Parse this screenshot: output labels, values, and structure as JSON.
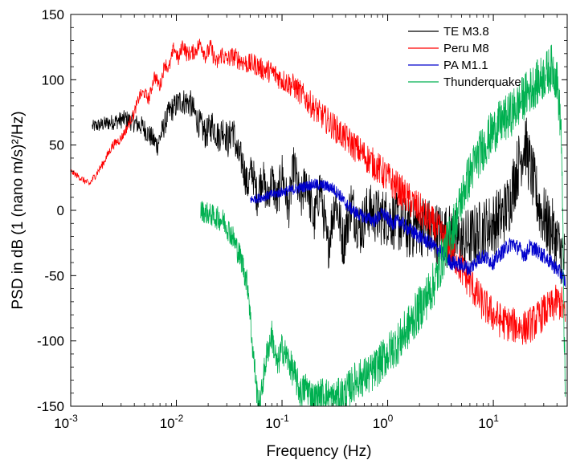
{
  "chart_data": {
    "type": "line",
    "xscale": "log",
    "xlim": [
      0.001,
      50
    ],
    "ylim": [
      -150,
      150
    ],
    "xlabel": "Frequency (Hz)",
    "ylabel": "PSD in dB (1 (nano m/s)²/Hz)",
    "grid": false,
    "legend_position": "top-right",
    "xticks": [
      {
        "value": 0.001,
        "base": "10",
        "exp": "-3"
      },
      {
        "value": 0.01,
        "base": "10",
        "exp": "-2"
      },
      {
        "value": 0.1,
        "base": "10",
        "exp": "-1"
      },
      {
        "value": 1,
        "base": "10",
        "exp": "0"
      },
      {
        "value": 10,
        "base": "10",
        "exp": "1"
      }
    ],
    "yticks": [
      {
        "value": 150,
        "label": "150"
      },
      {
        "value": 100,
        "label": "100"
      },
      {
        "value": 50,
        "label": "50"
      },
      {
        "value": 0,
        "label": "0"
      },
      {
        "value": -50,
        "label": "-50"
      },
      {
        "value": -100,
        "label": "-100"
      },
      {
        "value": -150,
        "label": "-150"
      }
    ],
    "series": [
      {
        "name": "TE M3.8",
        "color": "#000000",
        "x": [
          0.0016,
          0.0033,
          0.0048,
          0.0066,
          0.0085,
          0.011,
          0.0135,
          0.016,
          0.019,
          0.022,
          0.025,
          0.028,
          0.031,
          0.034,
          0.038,
          0.042,
          0.047,
          0.052,
          0.058,
          0.065,
          0.072,
          0.08,
          0.09,
          0.1,
          0.115,
          0.13,
          0.15,
          0.17,
          0.2,
          0.23,
          0.27,
          0.32,
          0.38,
          0.45,
          0.55,
          0.65,
          0.8,
          1.0,
          1.3,
          1.6,
          2.0,
          2.5,
          3.0,
          4.0,
          5.0,
          6.0,
          7.0,
          8.0,
          10.0,
          12.0,
          14.0,
          16.0,
          18.0,
          20.0,
          22.0,
          25.0,
          28.0,
          32.0,
          36.0,
          40.0,
          45.0,
          48.0
        ],
        "y": [
          64,
          70,
          64,
          50,
          75,
          84,
          82,
          68,
          58,
          66,
          56,
          63,
          52,
          64,
          42,
          38,
          18,
          32,
          10,
          28,
          8,
          25,
          5,
          30,
          0,
          35,
          5,
          25,
          -10,
          20,
          -30,
          10,
          -25,
          5,
          -15,
          0,
          -5,
          -5,
          -10,
          -15,
          -10,
          -15,
          -18,
          -20,
          -25,
          -22,
          -18,
          -15,
          -10,
          -5,
          5,
          25,
          40,
          52,
          35,
          15,
          0,
          -10,
          -15,
          -25,
          -35,
          -40
        ],
        "noise": 25
      },
      {
        "name": "Peru M8",
        "color": "#ff0000",
        "x": [
          0.001,
          0.0015,
          0.002,
          0.0025,
          0.003,
          0.0035,
          0.004,
          0.0045,
          0.005,
          0.0055,
          0.0062,
          0.007,
          0.0078,
          0.0085,
          0.0095,
          0.0105,
          0.0115,
          0.0125,
          0.0135,
          0.015,
          0.017,
          0.019,
          0.021,
          0.024,
          0.027,
          0.03,
          0.034,
          0.04,
          0.047,
          0.055,
          0.065,
          0.08,
          0.1,
          0.13,
          0.17,
          0.22,
          0.3,
          0.4,
          0.55,
          0.75,
          1.0,
          1.5,
          2.0,
          3.0,
          4.0,
          5.0,
          6.0,
          7.0,
          8.0,
          10.0,
          12.0,
          15.0,
          20.0,
          25.0,
          30.0,
          35.0,
          40.0,
          45.0,
          48.0
        ],
        "y": [
          30,
          20,
          35,
          50,
          55,
          65,
          75,
          88,
          90,
          85,
          103,
          95,
          113,
          108,
          125,
          115,
          128,
          120,
          120,
          122,
          128,
          118,
          125,
          112,
          120,
          115,
          118,
          115,
          112,
          112,
          108,
          106,
          100,
          95,
          85,
          75,
          65,
          55,
          45,
          35,
          25,
          10,
          0,
          -15,
          -30,
          -45,
          -55,
          -65,
          -72,
          -80,
          -85,
          -88,
          -90,
          -85,
          -78,
          -75,
          -70,
          -72,
          -85
        ],
        "noise": 14
      },
      {
        "name": "PA M1.1",
        "color": "#0000cc",
        "x": [
          0.05,
          0.065,
          0.08,
          0.1,
          0.13,
          0.16,
          0.2,
          0.25,
          0.3,
          0.35,
          0.4,
          0.5,
          0.6,
          0.75,
          0.9,
          1.1,
          1.3,
          1.6,
          2.0,
          2.5,
          3.0,
          4.0,
          5.0,
          6.0,
          7.0,
          8.0,
          10.0,
          12.0,
          15.0,
          18.0,
          20.0,
          22.0,
          25.0,
          30.0,
          35.0,
          40.0,
          45.0,
          48.0
        ],
        "y": [
          8,
          10,
          12,
          14,
          16,
          18,
          20,
          19,
          17,
          12,
          5,
          -2,
          -5,
          -8,
          -2,
          -10,
          -8,
          -15,
          -20,
          -25,
          -30,
          -40,
          -42,
          -45,
          -38,
          -35,
          -40,
          -32,
          -25,
          -30,
          -35,
          -28,
          -30,
          -35,
          -40,
          -45,
          -50,
          -55
        ],
        "noise": 6
      },
      {
        "name": "Thunderquake",
        "color": "#00b050",
        "x": [
          0.017,
          0.028,
          0.034,
          0.042,
          0.048,
          0.052,
          0.058,
          0.062,
          0.066,
          0.072,
          0.08,
          0.09,
          0.1,
          0.115,
          0.13,
          0.15,
          0.17,
          0.2,
          0.25,
          0.3,
          0.4,
          0.5,
          0.7,
          1.0,
          1.3,
          1.7,
          2.2,
          2.8,
          3.5,
          4.5,
          5.5,
          7.0,
          9.0,
          11.0,
          14.0,
          17.0,
          20.0,
          24.0,
          28.0,
          32.0,
          36.0,
          40.0,
          44.0,
          48.0
        ],
        "y": [
          0,
          -8,
          -20,
          -40,
          -60,
          -100,
          -140,
          -150,
          -130,
          -110,
          -95,
          -120,
          -105,
          -115,
          -125,
          -140,
          -135,
          -145,
          -140,
          -145,
          -140,
          -130,
          -125,
          -110,
          -100,
          -85,
          -70,
          -55,
          -30,
          -5,
          20,
          40,
          55,
          65,
          72,
          80,
          88,
          95,
          100,
          105,
          110,
          100,
          60,
          -150
        ],
        "noise": 18
      }
    ]
  }
}
